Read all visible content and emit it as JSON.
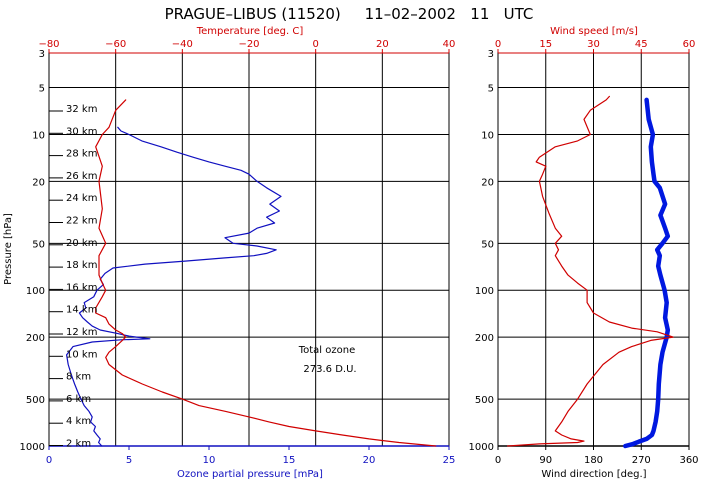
{
  "title": "PRAGUE–LIBUS (11520)     11–02–2002   11   UTC",
  "colors": {
    "ozone": "#1010c0",
    "temperature": "#d00000",
    "wind_speed": "#d00000",
    "wind_direction": "#0018e0",
    "frame": "#000000"
  },
  "chart_data": [
    {
      "type": "line",
      "panel": "ozone-temperature",
      "y_axis": {
        "label": "Pressure [hPa]",
        "scale": "log",
        "range": [
          1000,
          3
        ],
        "ticks": [
          "3",
          "5",
          "10",
          "20",
          "50",
          "100",
          "200",
          "500",
          "1000"
        ]
      },
      "x_bottom": {
        "label": "Ozone partial pressure [mPa]",
        "range": [
          0,
          25
        ],
        "ticks": [
          "0",
          "5",
          "10",
          "15",
          "20",
          "25"
        ]
      },
      "x_top": {
        "label": "Temperature [deg. C]",
        "range": [
          -80,
          40
        ],
        "ticks": [
          "−80",
          "−60",
          "−40",
          "−20",
          "0",
          "20",
          "40"
        ]
      },
      "altitude_labels": [
        "32 km",
        "30 km",
        "28 km",
        "26 km",
        "24 km",
        "22 km",
        "20 km",
        "18 km",
        "16 km",
        "14 km",
        "12 km",
        "10 km",
        "8 km",
        "6 km",
        "4 km",
        "2 km"
      ],
      "annotation": {
        "line1": "Total ozone",
        "line2": "273.6 D.U."
      },
      "series": [
        {
          "axis": "bottom",
          "points": [
            [
              3.3,
              1000
            ],
            [
              3.1,
              950
            ],
            [
              3.2,
              900
            ],
            [
              3.0,
              850
            ],
            [
              2.8,
              800
            ],
            [
              2.9,
              750
            ],
            [
              2.6,
              700
            ],
            [
              2.7,
              650
            ],
            [
              2.5,
              600
            ],
            [
              2.2,
              550
            ],
            [
              2.0,
              500
            ],
            [
              1.8,
              450
            ],
            [
              1.6,
              400
            ],
            [
              1.4,
              350
            ],
            [
              1.2,
              300
            ],
            [
              1.1,
              260
            ],
            [
              1.5,
              230
            ],
            [
              2.7,
              215
            ],
            [
              4.5,
              208
            ],
            [
              6.3,
              205
            ],
            [
              5.0,
              197
            ],
            [
              4.3,
              190
            ],
            [
              3.2,
              180
            ],
            [
              2.7,
              170
            ],
            [
              2.4,
              160
            ],
            [
              2.1,
              150
            ],
            [
              1.9,
              140
            ],
            [
              2.3,
              130
            ],
            [
              2.2,
              120
            ],
            [
              2.8,
              110
            ],
            [
              3.0,
              100
            ],
            [
              3.4,
              92
            ],
            [
              3.2,
              85
            ],
            [
              3.5,
              78
            ],
            [
              4.0,
              72
            ],
            [
              6.0,
              68
            ],
            [
              8.5,
              65
            ],
            [
              11.0,
              62
            ],
            [
              12.8,
              60
            ],
            [
              13.6,
              58
            ],
            [
              14.2,
              55
            ],
            [
              13.0,
              52
            ],
            [
              11.5,
              50
            ],
            [
              11.0,
              46
            ],
            [
              12.5,
              43
            ],
            [
              13.0,
              40
            ],
            [
              14.1,
              37
            ],
            [
              13.6,
              34
            ],
            [
              14.4,
              31
            ],
            [
              13.8,
              28
            ],
            [
              14.5,
              25
            ],
            [
              13.6,
              22
            ],
            [
              13.0,
              20
            ],
            [
              12.5,
              18
            ],
            [
              12.0,
              17
            ],
            [
              11.0,
              16
            ],
            [
              10.0,
              15
            ],
            [
              9.0,
              14
            ],
            [
              8.0,
              13
            ],
            [
              7.0,
              12
            ],
            [
              5.8,
              11
            ],
            [
              5.0,
              10
            ],
            [
              4.5,
              9.5
            ],
            [
              4.3,
              9.0
            ]
          ]
        },
        {
          "axis": "top",
          "points": [
            [
              36,
              1000
            ],
            [
              25,
              950
            ],
            [
              16,
              900
            ],
            [
              8,
              850
            ],
            [
              0,
              800
            ],
            [
              -8,
              750
            ],
            [
              -14,
              700
            ],
            [
              -20,
              650
            ],
            [
              -27,
              600
            ],
            [
              -35,
              550
            ],
            [
              -40,
              500
            ],
            [
              -46,
              450
            ],
            [
              -52,
              400
            ],
            [
              -58,
              350
            ],
            [
              -62,
              300
            ],
            [
              -63,
              270
            ],
            [
              -62,
              250
            ],
            [
              -60,
              230
            ],
            [
              -58,
              210
            ],
            [
              -57,
              200
            ],
            [
              -58,
              190
            ],
            [
              -60,
              180
            ],
            [
              -62,
              165
            ],
            [
              -63,
              150
            ],
            [
              -66,
              140
            ],
            [
              -66,
              130
            ],
            [
              -64,
              110
            ],
            [
              -63,
              100
            ],
            [
              -64,
              90
            ],
            [
              -65,
              80
            ],
            [
              -65,
              60
            ],
            [
              -63,
              50
            ],
            [
              -65,
              40
            ],
            [
              -64,
              30
            ],
            [
              -65,
              20
            ],
            [
              -64,
              16
            ],
            [
              -66,
              12
            ],
            [
              -64,
              10
            ],
            [
              -62,
              9
            ],
            [
              -60,
              7
            ],
            [
              -57,
              6
            ]
          ]
        }
      ]
    },
    {
      "type": "line",
      "panel": "wind",
      "y_axis": {
        "scale": "log",
        "range": [
          1000,
          3
        ],
        "ticks": [
          "3",
          "5",
          "10",
          "20",
          "50",
          "100",
          "200",
          "500",
          "1000"
        ]
      },
      "x_bottom": {
        "label": "Wind direction [deg.]",
        "range": [
          0,
          360
        ],
        "ticks": [
          "0",
          "90",
          "180",
          "270",
          "360"
        ]
      },
      "x_top": {
        "label": "Wind speed [m/s]",
        "range": [
          0,
          60
        ],
        "ticks": [
          "0",
          "15",
          "30",
          "45",
          "60"
        ]
      },
      "series": [
        {
          "axis": "bottom",
          "points": [
            [
              240,
              1000
            ],
            [
              255,
              970
            ],
            [
              265,
              940
            ],
            [
              280,
              900
            ],
            [
              290,
              850
            ],
            [
              293,
              800
            ],
            [
              297,
              700
            ],
            [
              300,
              600
            ],
            [
              302,
              500
            ],
            [
              303,
              400
            ],
            [
              306,
              300
            ],
            [
              310,
              250
            ],
            [
              318,
              200
            ],
            [
              320,
              180
            ],
            [
              315,
              150
            ],
            [
              318,
              120
            ],
            [
              314,
              100
            ],
            [
              306,
              80
            ],
            [
              302,
              70
            ],
            [
              305,
              60
            ],
            [
              300,
              55
            ],
            [
              310,
              50
            ],
            [
              320,
              45
            ],
            [
              315,
              40
            ],
            [
              306,
              33
            ],
            [
              315,
              28
            ],
            [
              305,
              22
            ],
            [
              295,
              20
            ],
            [
              293,
              18
            ],
            [
              290,
              15
            ],
            [
              288,
              12
            ],
            [
              292,
              10
            ],
            [
              284,
              8
            ],
            [
              280,
              6
            ]
          ]
        },
        {
          "axis": "top",
          "points": [
            [
              3,
              1000
            ],
            [
              13,
              970
            ],
            [
              25,
              950
            ],
            [
              27,
              930
            ],
            [
              23,
              900
            ],
            [
              20,
              850
            ],
            [
              18,
              800
            ],
            [
              20,
              700
            ],
            [
              22,
              600
            ],
            [
              25,
              500
            ],
            [
              28,
              400
            ],
            [
              33,
              300
            ],
            [
              38,
              250
            ],
            [
              42,
              230
            ],
            [
              48,
              210
            ],
            [
              55,
              200
            ],
            [
              50,
              185
            ],
            [
              42,
              175
            ],
            [
              35,
              160
            ],
            [
              30,
              140
            ],
            [
              28,
              120
            ],
            [
              28,
              100
            ],
            [
              25,
              90
            ],
            [
              22,
              80
            ],
            [
              20,
              70
            ],
            [
              18,
              60
            ],
            [
              19,
              55
            ],
            [
              18,
              50
            ],
            [
              20,
              45
            ],
            [
              18,
              40
            ],
            [
              16,
              32
            ],
            [
              14,
              25
            ],
            [
              13,
              20
            ],
            [
              14,
              18
            ],
            [
              15,
              16
            ],
            [
              12,
              15
            ],
            [
              13,
              14
            ],
            [
              18,
              12
            ],
            [
              25,
              11
            ],
            [
              29,
              10
            ],
            [
              27,
              8
            ],
            [
              29,
              7
            ],
            [
              34,
              6
            ],
            [
              35,
              5.7
            ]
          ]
        }
      ]
    }
  ]
}
